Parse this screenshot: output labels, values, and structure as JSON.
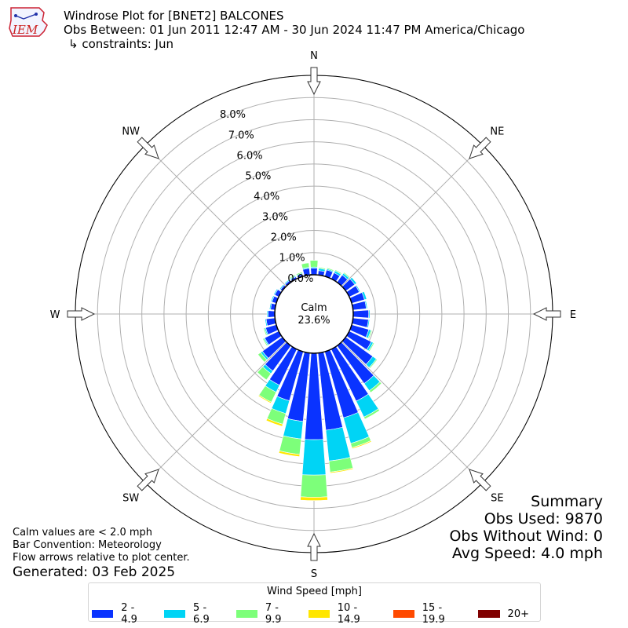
{
  "header": {
    "title": "Windrose Plot for [BNET2] BALCONES",
    "period": "Obs Between: 01 Jun 2011 12:47 AM - 30 Jun 2024 11:47 PM America/Chicago",
    "constraints": "↳ constraints: Jun"
  },
  "logo": {
    "text": "IEM"
  },
  "notes": {
    "calm_def": "Calm values are < 2.0 mph",
    "convention": "Bar Convention: Meteorology",
    "arrows": "Flow arrows relative to plot center.",
    "generated": "Generated: 03 Feb 2025"
  },
  "summary": {
    "title": "Summary",
    "obs_used": "Obs Used: 9870",
    "obs_without_wind": "Obs Without Wind: 0",
    "avg_speed": "Avg Speed: 4.0 mph"
  },
  "legend": {
    "title": "Wind Speed [mph]",
    "items": [
      {
        "label": "2 - 4.9",
        "color": "#0a33ff"
      },
      {
        "label": "5 - 6.9",
        "color": "#00d4f5"
      },
      {
        "label": "7 - 9.9",
        "color": "#7dff7a"
      },
      {
        "label": "10 - 14.9",
        "color": "#ffe600"
      },
      {
        "label": "15 - 19.9",
        "color": "#ff4a00"
      },
      {
        "label": "20+",
        "color": "#800000"
      }
    ]
  },
  "chart_data": {
    "type": "windrose",
    "calm_label": "Calm",
    "calm_value": "23.6%",
    "directions": [
      "N",
      "NE",
      "E",
      "SE",
      "S",
      "SW",
      "W",
      "NW"
    ],
    "ring_labels": [
      "0.0%",
      "1.0%",
      "2.0%",
      "3.0%",
      "4.0%",
      "5.0%",
      "6.0%",
      "7.0%",
      "8.0%"
    ],
    "radial_max": 9.0,
    "bin_directions_deg": [
      0,
      10,
      20,
      30,
      40,
      50,
      60,
      70,
      80,
      90,
      100,
      110,
      120,
      130,
      140,
      150,
      160,
      170,
      180,
      190,
      200,
      210,
      220,
      230,
      240,
      250,
      260,
      270,
      280,
      290,
      300,
      310,
      320,
      330,
      340,
      350
    ],
    "series": [
      {
        "name": "2 - 4.9",
        "values": [
          0.3,
          0.2,
          0.3,
          0.3,
          0.4,
          0.5,
          0.5,
          0.6,
          0.6,
          0.7,
          0.7,
          0.8,
          1.1,
          1.5,
          2.1,
          2.6,
          3.1,
          3.5,
          3.9,
          3.1,
          2.3,
          1.8,
          1.4,
          1.1,
          0.7,
          0.5,
          0.4,
          0.3,
          0.2,
          0.2,
          0.2,
          0.1,
          0.1,
          0.1,
          0.1,
          0.3
        ]
      },
      {
        "name": "5 - 6.9",
        "values": [
          0.05,
          0.1,
          0.05,
          0.1,
          0.1,
          0.1,
          0.05,
          0.1,
          0.05,
          0.05,
          0.05,
          0.1,
          0.1,
          0.2,
          0.4,
          0.8,
          1.2,
          1.4,
          1.6,
          0.8,
          0.6,
          0.35,
          0.15,
          0.1,
          0.05,
          0.05,
          0.05,
          0.05,
          0.05,
          0.05,
          0.05,
          0.05,
          0.05,
          0.05,
          0.05,
          0.05
        ]
      },
      {
        "name": "7 - 9.9",
        "values": [
          0.3,
          0.05,
          0.05,
          0.05,
          0.05,
          0.0,
          0.0,
          0.0,
          0.0,
          0.0,
          0.0,
          0.05,
          0.05,
          0.05,
          0.1,
          0.1,
          0.2,
          0.5,
          1.0,
          0.7,
          0.5,
          0.5,
          0.35,
          0.15,
          0.05,
          0.05,
          0.0,
          0.0,
          0.0,
          0.0,
          0.0,
          0.0,
          0.0,
          0.05,
          0.05,
          0.2
        ]
      },
      {
        "name": "10 - 14.9",
        "values": [
          0,
          0,
          0,
          0,
          0,
          0,
          0,
          0,
          0,
          0,
          0,
          0,
          0,
          0,
          0,
          0,
          0.05,
          0.05,
          0.15,
          0.1,
          0.1,
          0.05,
          0,
          0,
          0,
          0,
          0,
          0,
          0,
          0,
          0,
          0,
          0,
          0,
          0,
          0
        ]
      },
      {
        "name": "15 - 19.9",
        "values": [
          0,
          0,
          0,
          0,
          0,
          0,
          0,
          0,
          0,
          0,
          0,
          0,
          0,
          0,
          0,
          0,
          0,
          0,
          0,
          0,
          0,
          0,
          0,
          0,
          0,
          0,
          0,
          0,
          0,
          0,
          0,
          0,
          0,
          0,
          0,
          0
        ]
      },
      {
        "name": "20+",
        "values": [
          0,
          0,
          0,
          0,
          0,
          0,
          0,
          0,
          0,
          0,
          0,
          0,
          0,
          0,
          0,
          0,
          0,
          0,
          0,
          0,
          0,
          0,
          0,
          0,
          0,
          0,
          0,
          0,
          0,
          0,
          0,
          0,
          0,
          0,
          0,
          0
        ]
      }
    ]
  }
}
